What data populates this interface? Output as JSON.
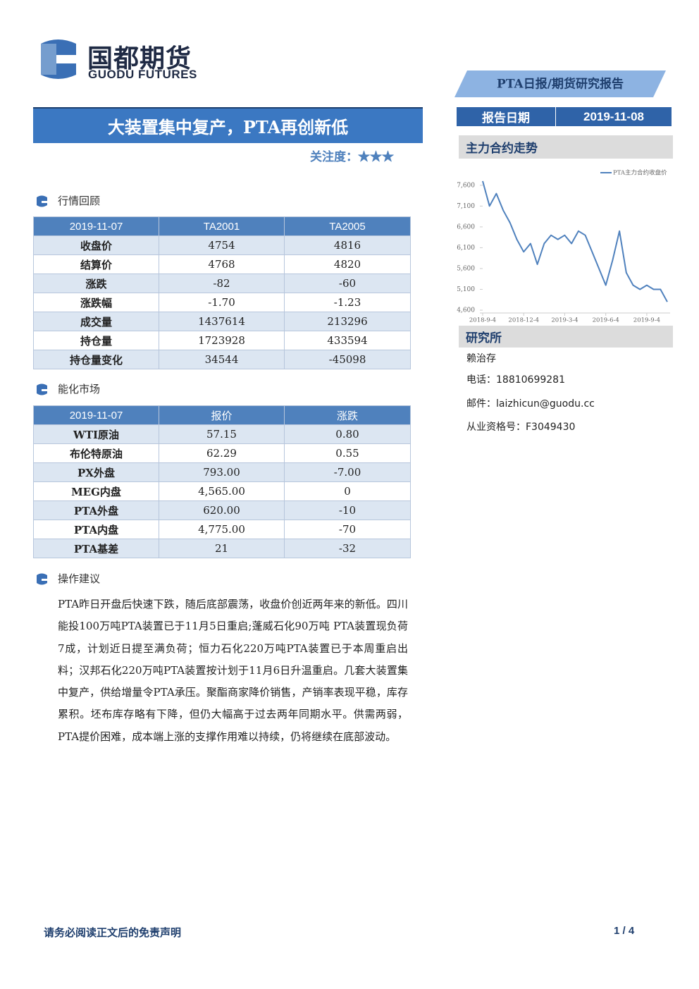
{
  "header": {
    "logo_cn": "国都期货",
    "logo_en": "GUODU FUTURES",
    "report_type": "PTA日报/期货研究报告",
    "title": "大装置集中复产，PTA再创新低",
    "attention_label": "关注度：",
    "stars": "★★★",
    "date_label": "报告日期",
    "date": "2019-11-08"
  },
  "sections": [
    {
      "heading": "行情回顾",
      "table": {
        "header": [
          "2019-11-07",
          "TA2001",
          "TA2005"
        ],
        "rows": [
          [
            "收盘价",
            "4754",
            "4816"
          ],
          [
            "结算价",
            "4768",
            "4820"
          ],
          [
            "涨跌",
            "-82",
            "-60"
          ],
          [
            "涨跌幅",
            "-1.70",
            "-1.23"
          ],
          [
            "成交量",
            "1437614",
            "213296"
          ],
          [
            "持仓量",
            "1723928",
            "433594"
          ],
          [
            "持仓量变化",
            "34544",
            "-45098"
          ]
        ]
      }
    },
    {
      "heading": "能化市场",
      "table": {
        "header": [
          "2019-11-07",
          "报价",
          "涨跌"
        ],
        "rows": [
          [
            "WTI原油",
            "57.15",
            "0.80"
          ],
          [
            "布伦特原油",
            "62.29",
            "0.55"
          ],
          [
            "PX外盘",
            "793.00",
            "-7.00"
          ],
          [
            "MEG内盘",
            "4,565.00",
            "0"
          ],
          [
            "PTA外盘",
            "620.00",
            "-10"
          ],
          [
            "PTA内盘",
            "4,775.00",
            "-70"
          ],
          [
            "PTA基差",
            "21",
            "-32"
          ]
        ]
      }
    },
    {
      "heading": "操作建议",
      "text": "PTA昨日开盘后快速下跌，随后底部震荡，收盘价创近两年来的新低。四川能投100万吨PTA装置已于11月5日重启;蓬威石化90万吨 PTA装置现负荷7成，计划近日提至满负荷；恒力石化220万吨PTA装置已于本周重启出料；汉邦石化220万吨PTA装置按计划于11月6日升温重启。几套大装置集中复产，供给增量令PTA承压。聚酯商家降价销售，产销率表现平稳，库存累积。坯布库存略有下降，但仍大幅高于过去两年同期水平。供需两弱，PTA提价困难，成本端上涨的支撑作用难以持续，仍将继续在底部波动。"
    }
  ],
  "chart_data": {
    "type": "line",
    "title": "主力合约走势",
    "categories": [
      "2018-9-4",
      null,
      null,
      null,
      null,
      null,
      "2018-12-4",
      null,
      null,
      null,
      null,
      null,
      "2019-3-4",
      null,
      null,
      null,
      null,
      null,
      "2019-6-4",
      null,
      null,
      null,
      null,
      null,
      "2019-9-4",
      null,
      null,
      null
    ],
    "series": [
      {
        "name": "PTA主力合约收盘价",
        "color": "#4f81bd",
        "values": [
          7700,
          7100,
          7400,
          7000,
          6700,
          6300,
          6000,
          6200,
          5700,
          6200,
          6400,
          6300,
          6400,
          6200,
          6500,
          6400,
          6000,
          5600,
          5200,
          5800,
          6500,
          5500,
          5200,
          5100,
          5200,
          5100,
          5100,
          4800
        ]
      }
    ],
    "ylim": [
      4600,
      7800
    ],
    "yticks": [
      {
        "value": 4600,
        "label": "4,600"
      },
      {
        "value": 5100,
        "label": "5,100"
      },
      {
        "value": 5600,
        "label": "5,600"
      },
      {
        "value": 6100,
        "label": "6,100"
      },
      {
        "value": 6600,
        "label": "6,600"
      },
      {
        "value": 7100,
        "label": "7,100"
      },
      {
        "value": 7600,
        "label": "7,600"
      }
    ],
    "grid": false,
    "legend": "top-right"
  },
  "research": {
    "title": "研究所",
    "name": "赖治存",
    "phone": "电话：18810699281",
    "email": "邮件：laizhicun@guodu.cc",
    "license": "从业资格号：F3049430"
  },
  "footer": {
    "disclaimer": "请务必阅读正文后的免责声明",
    "page": "1 / 4"
  }
}
